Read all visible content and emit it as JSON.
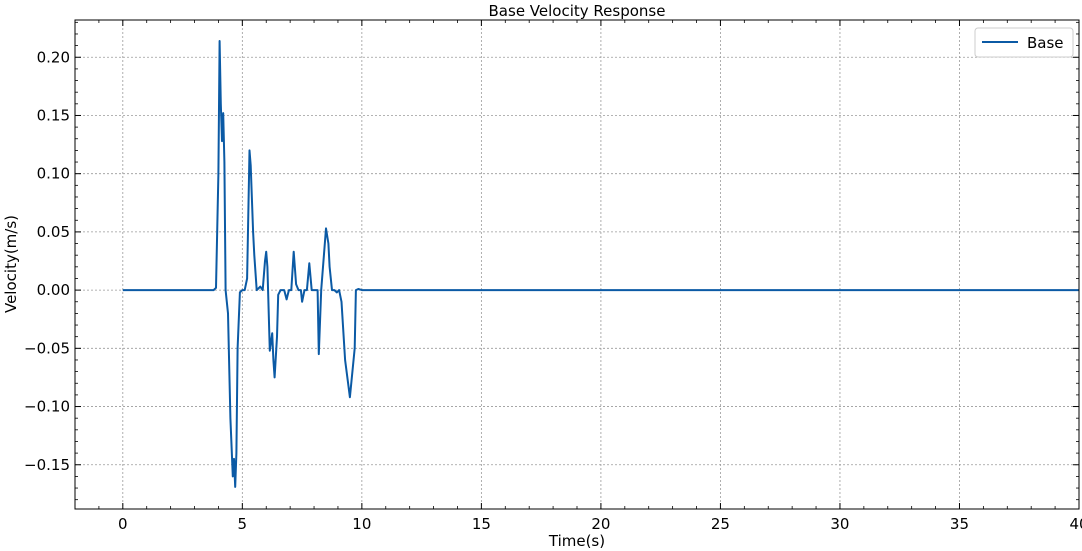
{
  "chart_data": {
    "type": "line",
    "title": "Base Velocity Response",
    "xlabel": "Time(s)",
    "ylabel": "Velocity(m/s)",
    "xlim": [
      -2,
      40
    ],
    "ylim": [
      -0.188,
      0.232
    ],
    "xticks": [
      0,
      5,
      10,
      15,
      20,
      25,
      30,
      35,
      40
    ],
    "xtick_labels": [
      "0",
      "5",
      "10",
      "15",
      "20",
      "25",
      "30",
      "35",
      "40"
    ],
    "yticks": [
      -0.15,
      -0.1,
      -0.05,
      0.0,
      0.05,
      0.1,
      0.15,
      0.2
    ],
    "ytick_labels": [
      "−0.15",
      "−0.10",
      "−0.05",
      "0.00",
      "0.05",
      "0.10",
      "0.15",
      "0.20"
    ],
    "grid": true,
    "legend_position": "top-right",
    "series": [
      {
        "name": "Base",
        "color": "#0b5aa5",
        "x": [
          0,
          3.5,
          3.8,
          3.9,
          4.0,
          4.05,
          4.1,
          4.15,
          4.2,
          4.25,
          4.3,
          4.4,
          4.5,
          4.6,
          4.65,
          4.7,
          4.75,
          4.8,
          4.9,
          5.0,
          5.1,
          5.2,
          5.3,
          5.35,
          5.45,
          5.5,
          5.6,
          5.75,
          5.85,
          5.95,
          6.0,
          6.05,
          6.15,
          6.25,
          6.3,
          6.35,
          6.45,
          6.5,
          6.6,
          6.75,
          6.85,
          6.95,
          7.05,
          7.15,
          7.25,
          7.35,
          7.45,
          7.5,
          7.6,
          7.7,
          7.8,
          7.9,
          8.0,
          8.15,
          8.2,
          8.3,
          8.5,
          8.6,
          8.65,
          8.75,
          8.85,
          8.95,
          9.05,
          9.15,
          9.3,
          9.5,
          9.7,
          9.75,
          9.85,
          10.0,
          12.0,
          15.0,
          20.0,
          25.0,
          30.0,
          35.0,
          40.0
        ],
        "y": [
          0.0,
          0.0,
          0.0,
          0.002,
          0.1,
          0.214,
          0.16,
          0.128,
          0.152,
          0.11,
          0.0,
          -0.02,
          -0.11,
          -0.16,
          -0.145,
          -0.169,
          -0.14,
          -0.05,
          -0.002,
          0.0,
          0.0,
          0.01,
          0.12,
          0.107,
          0.05,
          0.03,
          0.0,
          0.003,
          0.0,
          0.025,
          0.033,
          0.02,
          -0.052,
          -0.037,
          -0.06,
          -0.075,
          -0.04,
          -0.004,
          0.0,
          0.0,
          -0.008,
          0.0,
          0.0,
          0.033,
          0.005,
          0.0,
          0.0,
          -0.01,
          0.0,
          0.0,
          0.023,
          0.0,
          0.0,
          0.0,
          -0.055,
          0.0,
          0.053,
          0.04,
          0.02,
          0.0,
          0.0,
          -0.002,
          0.0,
          -0.01,
          -0.06,
          -0.092,
          -0.05,
          0.0,
          0.001,
          0.0,
          0.0,
          0.0,
          0.0,
          0.0,
          0.0,
          0.0,
          0.0
        ]
      }
    ]
  }
}
